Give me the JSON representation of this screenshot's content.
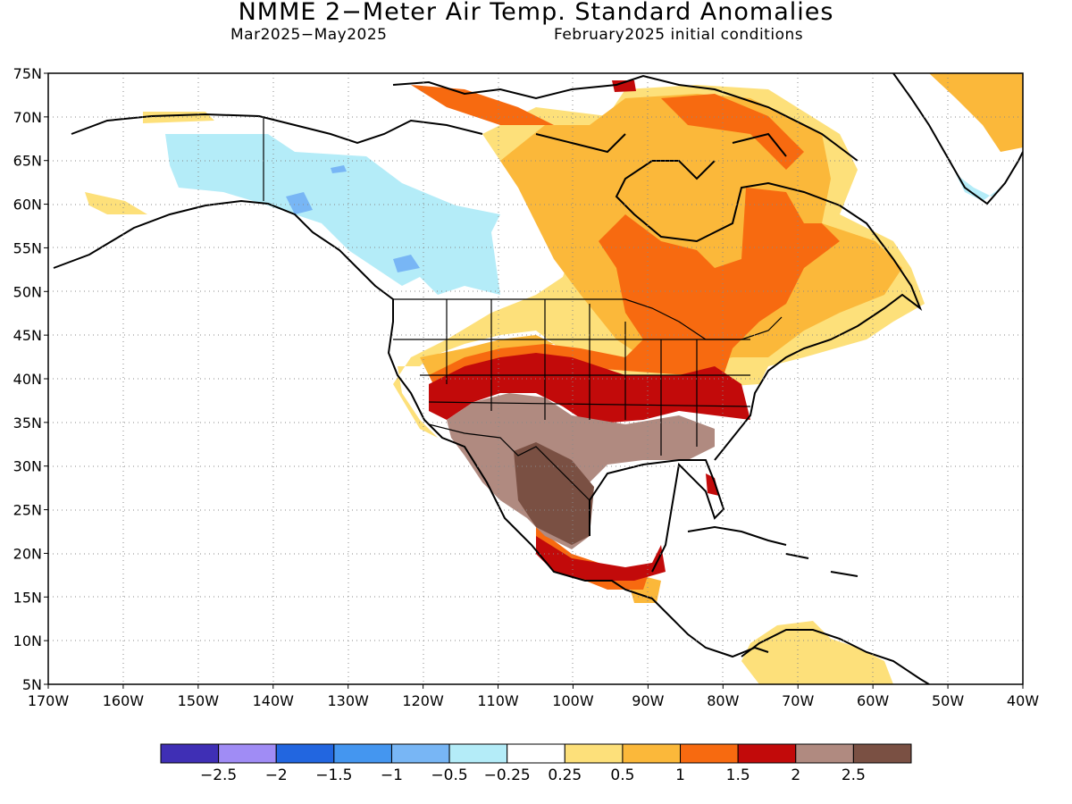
{
  "header": {
    "title": "NMME 2−Meter Air Temp. Standard Anomalies",
    "period": "Mar2025−May2025",
    "initial_conditions": "February2025 initial conditions"
  },
  "axes": {
    "lat_range": [
      5,
      75
    ],
    "lon_range": [
      -170,
      -40
    ],
    "lat_ticks": [
      "5N",
      "10N",
      "15N",
      "20N",
      "25N",
      "30N",
      "35N",
      "40N",
      "45N",
      "50N",
      "55N",
      "60N",
      "65N",
      "70N",
      "75N"
    ],
    "lon_ticks": [
      "170W",
      "160W",
      "150W",
      "140W",
      "130W",
      "120W",
      "110W",
      "100W",
      "90W",
      "80W",
      "70W",
      "60W",
      "50W",
      "40W"
    ],
    "grid": "dotted"
  },
  "colorbar": {
    "colors": [
      "#3f2fb5",
      "#a08cf5",
      "#2266e0",
      "#4496f0",
      "#78b6f5",
      "#b4ecf8",
      "#ffffff",
      "#fde07a",
      "#fbb83a",
      "#f76a10",
      "#c20a0a",
      "#b08a80",
      "#7a5043"
    ],
    "labels": [
      "−2.5",
      "−2",
      "−1.5",
      "−1",
      "−0.5",
      "−0.25",
      "0.25",
      "0.5",
      "1",
      "1.5",
      "2",
      "2.5"
    ]
  },
  "anomaly_regions": [
    {
      "name": "strong-positive-southwest-mexico",
      "category": "2.5"
    },
    {
      "name": "positive-southern-us",
      "category": "2"
    },
    {
      "name": "positive-central-us",
      "category": "1.5"
    },
    {
      "name": "positive-eastern-canada",
      "category": "1"
    },
    {
      "name": "weak-negative-western-canada",
      "category": "-0.5"
    },
    {
      "name": "weak-positive-greenland",
      "category": "0.5"
    }
  ]
}
